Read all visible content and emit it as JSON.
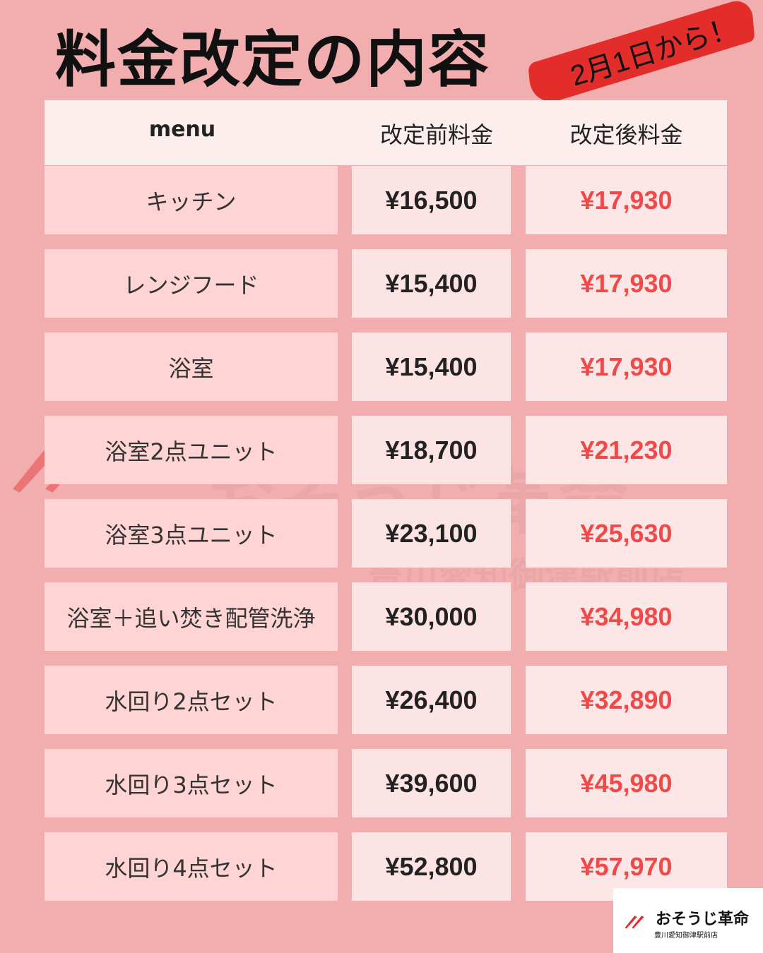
{
  "title": "料金改定の内容",
  "banner": "2月1日から！",
  "colors": {
    "background": "#f2aeae",
    "accent_red": "#e22d2a",
    "new_price": "#f24848"
  },
  "table": {
    "headers": [
      "menu",
      "改定前料金",
      "改定後料金"
    ],
    "rows": [
      {
        "menu": "キッチン",
        "before": "¥16,500",
        "after": "¥17,930"
      },
      {
        "menu": "レンジフード",
        "before": "¥15,400",
        "after": "¥17,930"
      },
      {
        "menu": "浴室",
        "before": "¥15,400",
        "after": "¥17,930"
      },
      {
        "menu": "浴室2点ユニット",
        "before": "¥18,700",
        "after": "¥21,230"
      },
      {
        "menu": "浴室3点ユニット",
        "before": "¥23,100",
        "after": "¥25,630"
      },
      {
        "menu": "浴室＋追い焚き配管洗浄",
        "before": "¥30,000",
        "after": "¥34,980"
      },
      {
        "menu": "水回り2点セット",
        "before": "¥26,400",
        "after": "¥32,890"
      },
      {
        "menu": "水回り3点セット",
        "before": "¥39,600",
        "after": "¥45,980"
      },
      {
        "menu": "水回り4点セット",
        "before": "¥52,800",
        "after": "¥57,970"
      }
    ]
  },
  "logo": {
    "name": "おそうじ革命",
    "branch": "豊川愛知御津駅前店"
  }
}
